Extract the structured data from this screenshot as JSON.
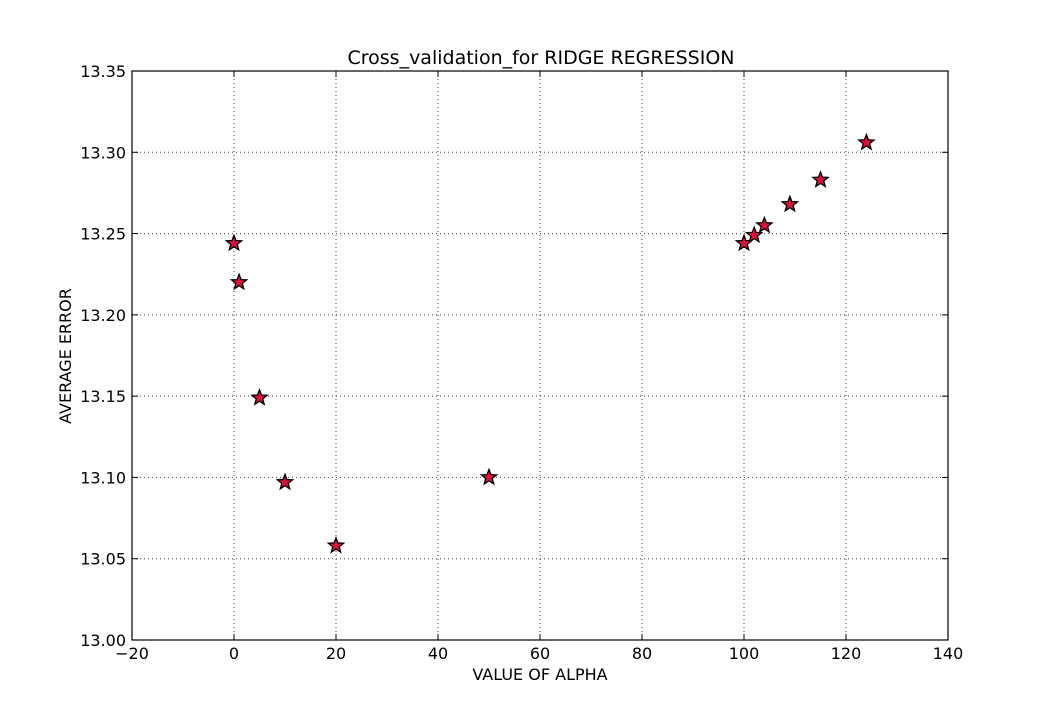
{
  "chart_data": {
    "type": "scatter",
    "title": "Cross_validation_for RIDGE REGRESSION",
    "xlabel": "VALUE OF ALPHA",
    "ylabel": "AVERAGE ERROR",
    "xlim": [
      -20,
      140
    ],
    "ylim": [
      13.0,
      13.35
    ],
    "xticks": [
      -20,
      0,
      20,
      40,
      60,
      80,
      100,
      120,
      140
    ],
    "xtick_labels": [
      "−20",
      "0",
      "20",
      "40",
      "60",
      "80",
      "100",
      "120",
      "140"
    ],
    "yticks": [
      13.0,
      13.05,
      13.1,
      13.15,
      13.2,
      13.25,
      13.3,
      13.35
    ],
    "ytick_labels": [
      "13.00",
      "13.05",
      "13.10",
      "13.15",
      "13.20",
      "13.25",
      "13.30",
      "13.35"
    ],
    "grid": true,
    "marker": "star",
    "marker_color": "#d8143a",
    "series": [
      {
        "x": [
          0,
          1,
          5,
          10,
          20,
          50,
          100,
          102,
          104,
          109,
          115,
          124
        ],
        "y": [
          13.244,
          13.22,
          13.149,
          13.097,
          13.058,
          13.1,
          13.244,
          13.249,
          13.255,
          13.268,
          13.283,
          13.306
        ]
      }
    ]
  }
}
